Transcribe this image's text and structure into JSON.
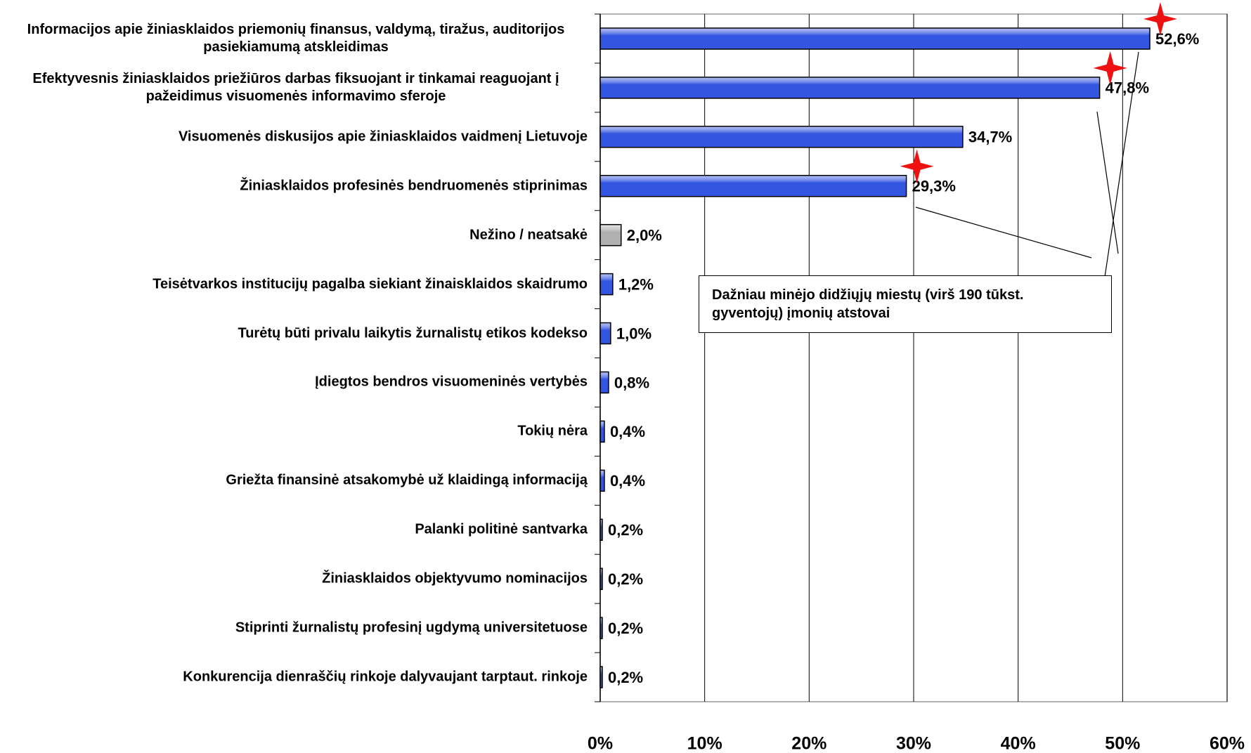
{
  "chart_data": {
    "type": "hbar",
    "categories": [
      "Informacijos apie žiniasklaidos priemonių finansus, valdymą, tiražus, auditorijos pasiekiamumą atskleidimas",
      "Efektyvesnis žiniasklaidos priežiūros darbas fiksuojant ir tinkamai reaguojant į pažeidimus visuomenės informavimo sferoje",
      "Visuomenės diskusijos apie žiniasklaidos vaidmenį Lietuvoje",
      "Žiniasklaidos profesinės bendruomenės stiprinimas",
      "Nežino / neatsakė",
      "Teisėtvarkos institucijų pagalba siekiant žinaisklaidos skaidrumo",
      "Turėtų būti privalu laikytis žurnalistų etikos kodekso",
      "Įdiegtos bendros visuomeninės vertybės",
      "Tokių nėra",
      "Griežta finansinė atsakomybė už klaidingą informaciją",
      "Palanki politinė santvarka",
      "Žiniasklaidos objektyvumo nominacijos",
      "Stiprinti žurnalistų profesinį ugdymą universitetuose",
      "Konkurencija dienraščių rinkoje dalyvaujant tarptaut. rinkoje"
    ],
    "values": [
      52.6,
      47.8,
      34.7,
      29.3,
      2.0,
      1.2,
      1.0,
      0.8,
      0.4,
      0.4,
      0.2,
      0.2,
      0.2,
      0.2
    ],
    "value_labels": [
      "52,6%",
      "47,8%",
      "34,7%",
      "29,3%",
      "2,0%",
      "1,2%",
      "1,0%",
      "0,8%",
      "0,4%",
      "0,4%",
      "0,2%",
      "0,2%",
      "0,2%",
      "0,2%"
    ],
    "colors": [
      "#3355e0",
      "#3355e0",
      "#3355e0",
      "#3355e0",
      "#b0b0b0",
      "#3355e0",
      "#3355e0",
      "#3355e0",
      "#3355e0",
      "#3355e0",
      "#3355e0",
      "#3355e0",
      "#3355e0",
      "#3355e0"
    ],
    "xlim": [
      0,
      60
    ],
    "xticks": [
      {
        "value": 0,
        "label": "0%"
      },
      {
        "value": 10,
        "label": "10%"
      },
      {
        "value": 20,
        "label": "20%"
      },
      {
        "value": 30,
        "label": "30%"
      },
      {
        "value": 40,
        "label": "40%"
      },
      {
        "value": 50,
        "label": "50%"
      },
      {
        "value": 60,
        "label": "60%"
      }
    ],
    "grid": true,
    "annotation": "Dažniau minėjo didžiųjų miestų (virš 190 tūkst. gyventojų) įmonių atstovai",
    "annotation_targets": [
      0,
      1,
      3
    ]
  }
}
